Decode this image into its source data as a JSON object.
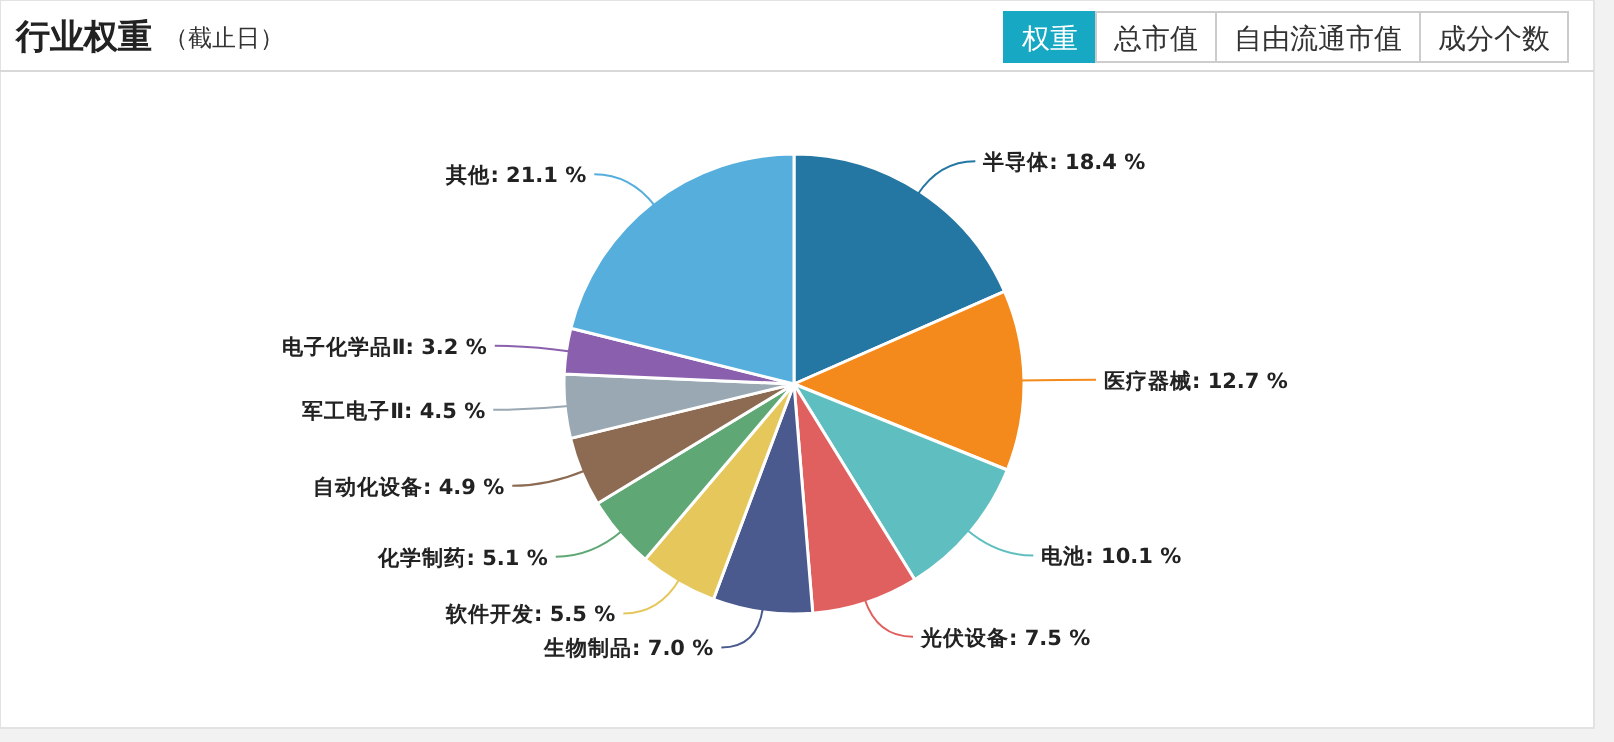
{
  "chart_data": {
    "type": "pie",
    "title": "行业权重",
    "subtitle": "（截止日）",
    "annotations": [
      "权重",
      "总市值",
      "自由流通市值",
      "成分个数"
    ],
    "categories": [
      "半导体",
      "医疗器械",
      "电池",
      "光伏设备",
      "生物制品",
      "软件开发",
      "化学制药",
      "自动化设备",
      "军工电子Ⅱ",
      "电子化学品Ⅱ",
      "其他"
    ],
    "values": [
      18.4,
      12.7,
      10.1,
      7.5,
      7.0,
      5.5,
      5.1,
      4.9,
      4.5,
      3.2,
      21.1
    ],
    "value_labels": [
      "18.4 %",
      "12.7 %",
      "10.1 %",
      "7.5 %",
      "7.0 %",
      "5.5 %",
      "5.1 %",
      "4.9 %",
      "4.5 %",
      "3.2 %",
      "21.1 %"
    ],
    "colors": [
      "#2577a3",
      "#f58a1c",
      "#5fbfc0",
      "#e06060",
      "#4a5a8e",
      "#e6c75c",
      "#5fa875",
      "#8c6b52",
      "#9aa8b4",
      "#8a60ae",
      "#56aedd"
    ]
  }
}
